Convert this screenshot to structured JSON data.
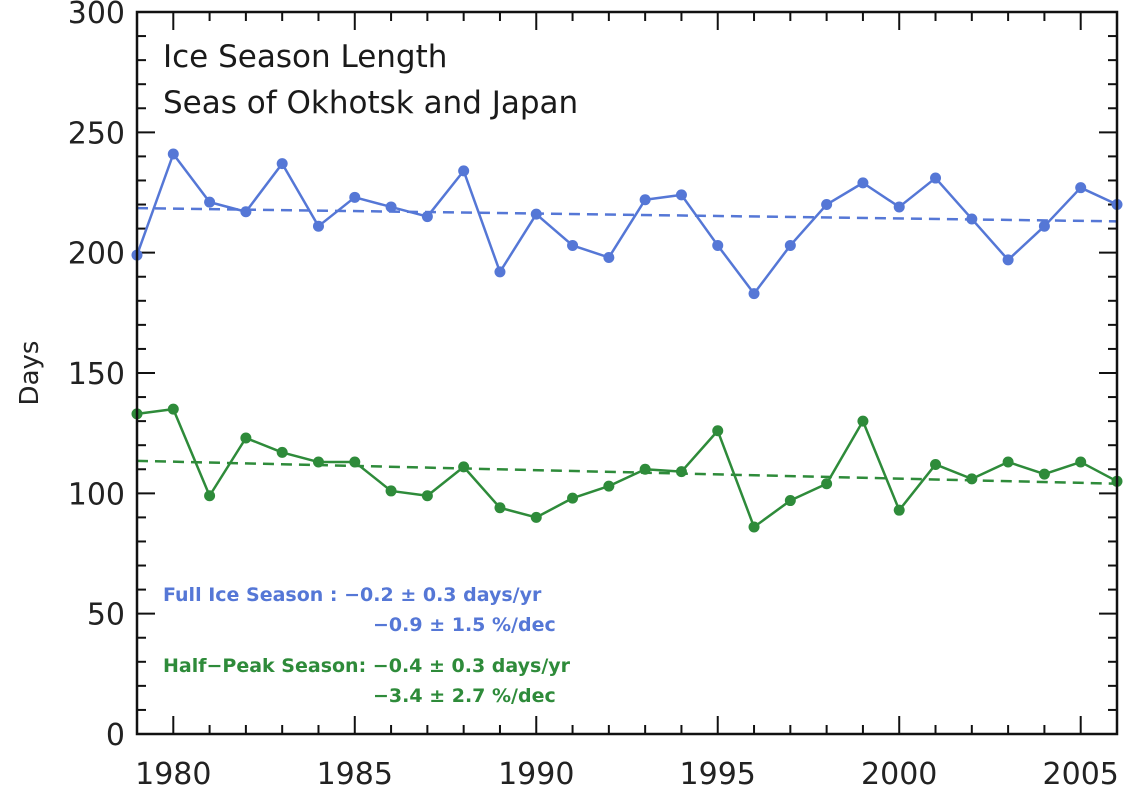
{
  "chart_data": {
    "type": "line",
    "title_lines": [
      "Ice Season Length",
      "Seas of Okhotsk and Japan"
    ],
    "xlabel": "",
    "ylabel": "Days",
    "xlim": [
      1979,
      2006
    ],
    "ylim": [
      0,
      300
    ],
    "x_ticks": [
      1980,
      1985,
      1990,
      1995,
      2000,
      2005
    ],
    "y_ticks": [
      0,
      50,
      100,
      150,
      200,
      250,
      300
    ],
    "x_minor_step": 1,
    "y_minor_step": 10,
    "grid": false,
    "x": [
      1979,
      1980,
      1981,
      1982,
      1983,
      1984,
      1985,
      1986,
      1987,
      1988,
      1989,
      1990,
      1991,
      1992,
      1993,
      1994,
      1995,
      1996,
      1997,
      1998,
      1999,
      2000,
      2001,
      2002,
      2003,
      2004,
      2005,
      2006
    ],
    "series": [
      {
        "color": "#5577d6",
        "values": [
          199,
          241,
          221,
          217,
          237,
          211,
          223,
          219,
          215,
          234,
          192,
          216,
          203,
          198,
          222,
          224,
          203,
          183,
          203,
          220,
          229,
          219,
          231,
          214,
          197,
          211,
          227,
          220
        ],
        "trend": [
          218.5,
          213.0
        ]
      },
      {
        "color": "#2e8b3a",
        "values": [
          133,
          135,
          99,
          123,
          117,
          113,
          113,
          101,
          99,
          111,
          94,
          90,
          98,
          103,
          110,
          109,
          126,
          86,
          97,
          104,
          130,
          93,
          112,
          106,
          113,
          108,
          113,
          105
        ],
        "trend": [
          113.5,
          104.0
        ]
      }
    ],
    "annotations": {
      "full": {
        "color": "#5577d6",
        "line1": "Full Ice Season :  −0.2  ±  0.3  days/yr",
        "line2": "−0.9  ±  1.5   %/dec"
      },
      "half": {
        "color": "#2e8b3a",
        "line1": "Half−Peak Season:  −0.4  ±  0.3  days/yr",
        "line2": "−3.4  ±  2.7   %/dec"
      }
    }
  }
}
